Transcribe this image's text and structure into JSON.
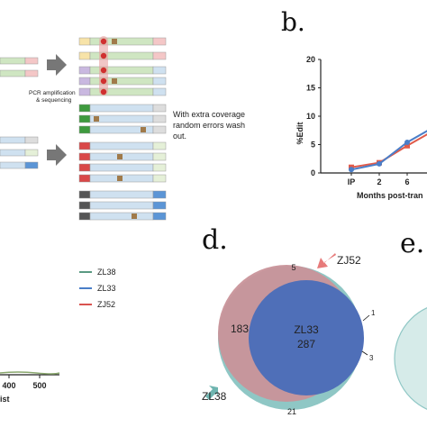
{
  "panel_a": {
    "pcr_label_1": "PCR amplification",
    "pcr_label_2": "& sequencing",
    "note_1": "With extra coverage",
    "note_2": "random errors wash",
    "note_3": "out."
  },
  "panel_b": {
    "letter": "b.",
    "chart_data": {
      "type": "line",
      "ylabel": "%Edit",
      "xlabel": "Months post-tran",
      "x_ticks": [
        "IP",
        "2",
        "6"
      ],
      "y_ticks": [
        "0",
        "5",
        "10",
        "15",
        "20"
      ],
      "ylim": [
        0,
        20
      ],
      "series": [
        {
          "color": "#e05a4a",
          "values": [
            1.0,
            1.8,
            4.8,
            7.6
          ]
        },
        {
          "color": "#4a7ec8",
          "values": [
            0.6,
            1.6,
            5.4,
            8.2
          ]
        }
      ]
    }
  },
  "panel_c": {
    "legend": [
      {
        "label": "ZL38",
        "color": "#5a9a82"
      },
      {
        "label": "ZL33",
        "color": "#4a7ec8"
      },
      {
        "label": "ZJ52",
        "color": "#d9534f"
      }
    ],
    "x_ticks": [
      "400",
      "500"
    ],
    "xlabel_fragment": "ist"
  },
  "panel_d": {
    "letter": "d.",
    "venn": {
      "labels": {
        "zj52": "ZJ52",
        "zl38": "ZL38",
        "zl33": "ZL33"
      },
      "counts": {
        "zl33_center": "287",
        "zl38_zj52_only": "183",
        "zj52_only": "5",
        "right_1": "1",
        "right_3": "3",
        "zl38_only": "21"
      }
    }
  },
  "panel_e": {
    "letter": "e."
  }
}
